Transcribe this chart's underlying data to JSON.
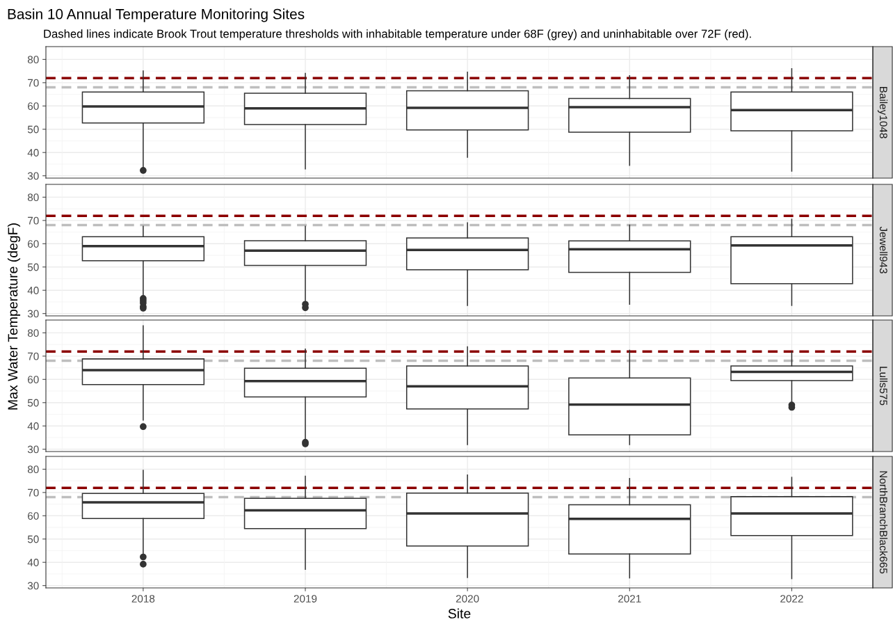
{
  "chart_data": [
    {
      "type": "box",
      "title": "Basin 10 Annual Temperature Monitoring Sites",
      "subtitle": "Dashed lines indicate Brook Trout temperature thresholds with inhabitable temperature under 68F (grey) and uninhabitable over 72F (red).",
      "ylabel": "Max Water Temperature (degF)",
      "annotations": [
        "Bailey1048"
      ],
      "categories": [
        "2018",
        "2019",
        "2020",
        "2021",
        "2022"
      ],
      "boxes": [
        {
          "low": 33.5,
          "q1": 52.7,
          "median": 59.8,
          "q3": 66,
          "high": 75,
          "outliers": [
            32.3
          ]
        },
        {
          "low": 33,
          "q1": 52,
          "median": 59,
          "q3": 65.5,
          "high": 74
        },
        {
          "low": 38,
          "q1": 49.7,
          "median": 59.2,
          "q3": 66.5,
          "high": 74.5
        },
        {
          "low": 34.5,
          "q1": 48.7,
          "median": 59.5,
          "q3": 63.2,
          "high": 73
        },
        {
          "low": 32,
          "q1": 49.3,
          "median": 58.2,
          "q3": 66,
          "high": 76
        }
      ],
      "ylim": [
        29,
        85.5
      ],
      "yticks": [
        30,
        40,
        50,
        60,
        70,
        80
      ],
      "grid": true,
      "tick_labels": "y",
      "ref_lines": [
        {
          "axis": "y",
          "value": 68,
          "color": "#bebebe",
          "line_style": "dashed"
        },
        {
          "axis": "y",
          "value": 72,
          "color": "#8b0000",
          "line_style": "dashed"
        }
      ]
    },
    {
      "type": "box",
      "annotations": [
        "Jewell943"
      ],
      "categories": [
        "2018",
        "2019",
        "2020",
        "2021",
        "2022"
      ],
      "boxes": [
        {
          "low": 37.5,
          "q1": 52.7,
          "median": 59,
          "q3": 63,
          "high": 67.5,
          "outliers": [
            36.5,
            35.5,
            34.5,
            33,
            32.3
          ]
        },
        {
          "low": 35,
          "q1": 50.7,
          "median": 57,
          "q3": 61.3,
          "high": 67.5,
          "outliers": [
            34,
            32.5
          ]
        },
        {
          "low": 33.5,
          "q1": 48.8,
          "median": 57.3,
          "q3": 62.5,
          "high": 69
        },
        {
          "low": 34,
          "q1": 47.7,
          "median": 57.6,
          "q3": 61.2,
          "high": 68
        },
        {
          "low": 33.5,
          "q1": 42.8,
          "median": 59.3,
          "q3": 63,
          "high": 70.5
        }
      ],
      "ylim": [
        29,
        85.5
      ],
      "yticks": [
        30,
        40,
        50,
        60,
        70,
        80
      ],
      "grid": true,
      "tick_labels": "y",
      "ref_lines": [
        {
          "axis": "y",
          "value": 68,
          "color": "#bebebe",
          "line_style": "dashed"
        },
        {
          "axis": "y",
          "value": 72,
          "color": "#8b0000",
          "line_style": "dashed"
        }
      ]
    },
    {
      "type": "box",
      "annotations": [
        "Lulls575"
      ],
      "categories": [
        "2018",
        "2019",
        "2020",
        "2021",
        "2022"
      ],
      "boxes": [
        {
          "low": 42.5,
          "q1": 57.8,
          "median": 64,
          "q3": 68.8,
          "high": 83,
          "outliers": [
            39.7
          ]
        },
        {
          "low": 34,
          "q1": 52.5,
          "median": 59.3,
          "q3": 64.8,
          "high": 73,
          "outliers": [
            33,
            32.3
          ]
        },
        {
          "low": 32,
          "q1": 47.3,
          "median": 57,
          "q3": 65.8,
          "high": 74
        },
        {
          "low": 32,
          "q1": 36.2,
          "median": 49.2,
          "q3": 60.6,
          "high": 72.5
        },
        {
          "low": 50,
          "q1": 59.5,
          "median": 63.2,
          "q3": 65.8,
          "high": 72,
          "outliers": [
            49,
            48
          ]
        }
      ],
      "ylim": [
        29,
        85.5
      ],
      "yticks": [
        30,
        40,
        50,
        60,
        70,
        80
      ],
      "grid": true,
      "tick_labels": "y",
      "ref_lines": [
        {
          "axis": "y",
          "value": 68,
          "color": "#bebebe",
          "line_style": "dashed"
        },
        {
          "axis": "y",
          "value": 72,
          "color": "#8b0000",
          "line_style": "dashed"
        }
      ]
    },
    {
      "type": "box",
      "xlabel": "Site",
      "annotations": [
        "NorthBranchBlack665"
      ],
      "categories": [
        "2018",
        "2019",
        "2020",
        "2021",
        "2022"
      ],
      "boxes": [
        {
          "low": 43.5,
          "q1": 58.8,
          "median": 65.8,
          "q3": 69.6,
          "high": 79.5,
          "outliers": [
            42.3,
            39.2
          ]
        },
        {
          "low": 37,
          "q1": 54.5,
          "median": 62.3,
          "q3": 67.5,
          "high": 77
        },
        {
          "low": 33.5,
          "q1": 47,
          "median": 61,
          "q3": 69.7,
          "high": 77.5
        },
        {
          "low": 33.3,
          "q1": 43.6,
          "median": 58.7,
          "q3": 64.7,
          "high": 76
        },
        {
          "low": 33,
          "q1": 51.5,
          "median": 61,
          "q3": 68.2,
          "high": 76.5
        }
      ],
      "ylim": [
        29,
        85.5
      ],
      "yticks": [
        30,
        40,
        50,
        60,
        70,
        80
      ],
      "grid": true,
      "ref_lines": [
        {
          "axis": "y",
          "value": 68,
          "color": "#bebebe",
          "line_style": "dashed"
        },
        {
          "axis": "y",
          "value": 72,
          "color": "#8b0000",
          "line_style": "dashed"
        }
      ]
    }
  ]
}
